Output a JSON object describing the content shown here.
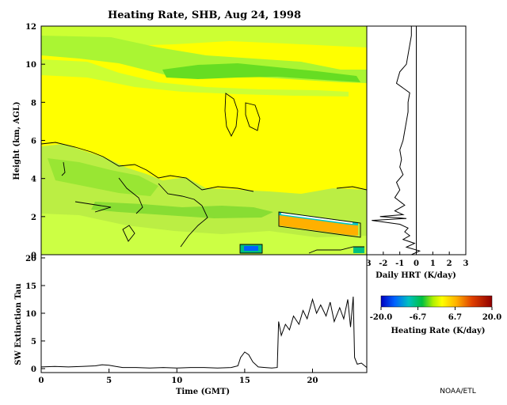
{
  "chart_data": [
    {
      "type": "heatmap",
      "title": "Heating Rate, SHB, Aug 24, 1998",
      "ylabel": "Height (km, AGL)",
      "xlim": [
        0,
        24
      ],
      "ylim": [
        0,
        12
      ],
      "yticks": [
        "0",
        "2",
        "4",
        "6",
        "8",
        "10",
        "12"
      ],
      "colorbar": {
        "label": "Heating Rate (K/day)",
        "range": [
          -20.0,
          20.0
        ],
        "ticks": [
          "-20.0",
          "-6.7",
          "6.7",
          "20.0"
        ]
      },
      "features": [
        {
          "description_value": "cloud layer (strong cooling/heating)",
          "x_range": [
            17.4,
            22.9
          ],
          "y_range": [
            1.8,
            2.2
          ]
        },
        {
          "description_value": "cloud",
          "x_range": [
            14.8,
            16.4
          ],
          "y_range": [
            0.05,
            0.5
          ]
        },
        {
          "description_value": "cloud",
          "x_range": [
            23.0,
            23.8
          ],
          "y_range": [
            0.05,
            0.35
          ]
        }
      ]
    },
    {
      "type": "line",
      "xlabel": "Daily HRT (K/day)",
      "xlim": [
        -3,
        3
      ],
      "xticks": [
        "-3",
        "-2",
        "-1",
        "0",
        "1",
        "2",
        "3"
      ],
      "ylim": [
        0,
        12
      ],
      "profile": [
        [
          0.0,
          -0.3
        ],
        [
          0.2,
          0.2
        ],
        [
          0.4,
          -0.6
        ],
        [
          0.6,
          -0.1
        ],
        [
          0.8,
          -0.8
        ],
        [
          1.0,
          -0.4
        ],
        [
          1.2,
          -0.7
        ],
        [
          1.4,
          -0.5
        ],
        [
          1.6,
          -1.0
        ],
        [
          1.8,
          -2.7
        ],
        [
          1.9,
          -0.6
        ],
        [
          2.0,
          -2.2
        ],
        [
          2.1,
          -0.8
        ],
        [
          2.3,
          -1.3
        ],
        [
          2.6,
          -0.7
        ],
        [
          3.0,
          -1.3
        ],
        [
          3.4,
          -1.0
        ],
        [
          3.8,
          -1.2
        ],
        [
          4.2,
          -0.8
        ],
        [
          4.6,
          -1.0
        ],
        [
          5.0,
          -0.9
        ],
        [
          5.5,
          -1.0
        ],
        [
          6.0,
          -0.8
        ],
        [
          6.5,
          -0.7
        ],
        [
          7.0,
          -0.6
        ],
        [
          7.5,
          -0.5
        ],
        [
          8.0,
          -0.5
        ],
        [
          8.5,
          -0.4
        ],
        [
          9.0,
          -1.2
        ],
        [
          9.3,
          -1.1
        ],
        [
          9.6,
          -1.0
        ],
        [
          10.0,
          -0.6
        ],
        [
          10.5,
          -0.5
        ],
        [
          11.0,
          -0.4
        ],
        [
          11.5,
          -0.3
        ],
        [
          12.0,
          -0.3
        ]
      ]
    },
    {
      "type": "line",
      "xlabel": "Time (GMT)",
      "ylabel": "SW Extinction Tau",
      "xlim": [
        0,
        24
      ],
      "ylim": [
        0,
        20
      ],
      "xticks": [
        "0",
        "5",
        "10",
        "15",
        "20"
      ],
      "yticks": [
        "0",
        "5",
        "10",
        "15",
        "20"
      ],
      "x": [
        0,
        1,
        2,
        3,
        4,
        4.5,
        5,
        5.5,
        6,
        7,
        8,
        9,
        10,
        11,
        12,
        13,
        14,
        14.5,
        14.7,
        15,
        15.3,
        15.6,
        16,
        16.5,
        17,
        17.4,
        17.5,
        17.7,
        18,
        18.3,
        18.6,
        19,
        19.3,
        19.6,
        20,
        20.3,
        20.6,
        21,
        21.3,
        21.6,
        22,
        22.3,
        22.6,
        22.8,
        23,
        23.1,
        23.3,
        23.6,
        24
      ],
      "values": [
        0.3,
        0.4,
        0.3,
        0.4,
        0.5,
        0.7,
        0.6,
        0.4,
        0.2,
        0.2,
        0.1,
        0.2,
        0.1,
        0.2,
        0.2,
        0.1,
        0.2,
        0.5,
        2.0,
        3.0,
        2.5,
        1.2,
        0.3,
        0.2,
        0.1,
        0.2,
        8.5,
        6.0,
        8.0,
        7.0,
        9.5,
        8.0,
        10.5,
        9.0,
        12.5,
        10.0,
        11.5,
        9.5,
        12.0,
        8.5,
        11.0,
        9.0,
        12.5,
        7.5,
        13.0,
        2.0,
        0.8,
        1.0,
        0.2
      ]
    }
  ],
  "credit": "NOAA/ETL"
}
